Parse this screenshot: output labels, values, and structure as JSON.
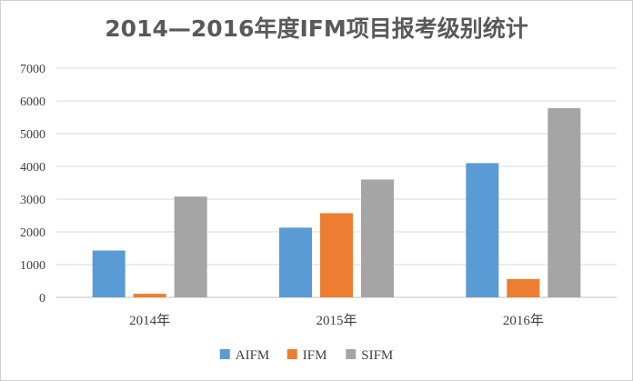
{
  "chart_data": {
    "type": "bar",
    "title": "2014—2016年度IFM项目报考级别统计",
    "categories": [
      "2014年",
      "2015年",
      "2016年"
    ],
    "series": [
      {
        "name": "AIFM",
        "values": [
          1430,
          2130,
          4100
        ],
        "color": "#5b9bd5"
      },
      {
        "name": "IFM",
        "values": [
          110,
          2570,
          560
        ],
        "color": "#ed7d31"
      },
      {
        "name": "SIFM",
        "values": [
          3080,
          3600,
          5780
        ],
        "color": "#a5a5a5"
      }
    ],
    "ylim": [
      0,
      7000
    ],
    "yticks": [
      0,
      1000,
      2000,
      3000,
      4000,
      5000,
      6000,
      7000
    ],
    "xlabel": "",
    "ylabel": "",
    "grid": true,
    "legend": "bottom"
  }
}
